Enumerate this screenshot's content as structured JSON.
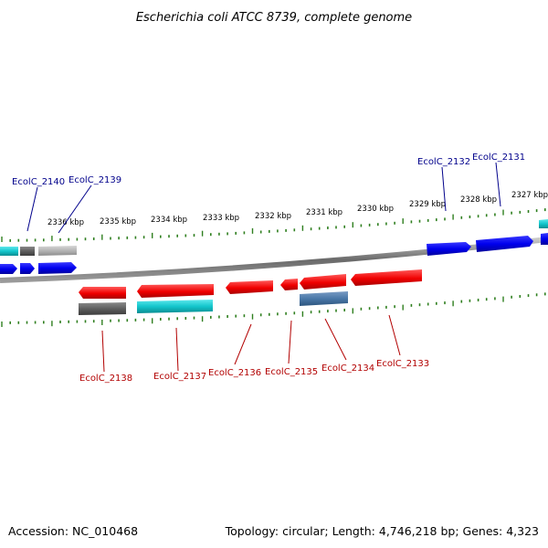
{
  "title": "Escherichia coli ATCC 8739, complete genome",
  "footer": {
    "accession": "Accession: NC_010468",
    "stats": "Topology: circular; Length: 4,746,218 bp; Genes: 4,323"
  },
  "colors": {
    "forward_label": "#00008b",
    "reverse_label": "#b20000",
    "tick": "#2f7f1f",
    "backbone": "#7c7c7c"
  },
  "kbp_ticks": [
    "2336 kbp",
    "2335 kbp",
    "2334 kbp",
    "2333 kbp",
    "2332 kbp",
    "2331 kbp",
    "2330 kbp",
    "2329 kbp",
    "2328 kbp",
    "2327 kbp"
  ],
  "forward_labels": [
    "EcolC_2140",
    "EcolC_2139",
    "EcolC_2132",
    "EcolC_2131"
  ],
  "reverse_labels": [
    "EcolC_2138",
    "EcolC_2137",
    "EcolC_2136",
    "EcolC_2135",
    "EcolC_2134",
    "EcolC_2133"
  ]
}
